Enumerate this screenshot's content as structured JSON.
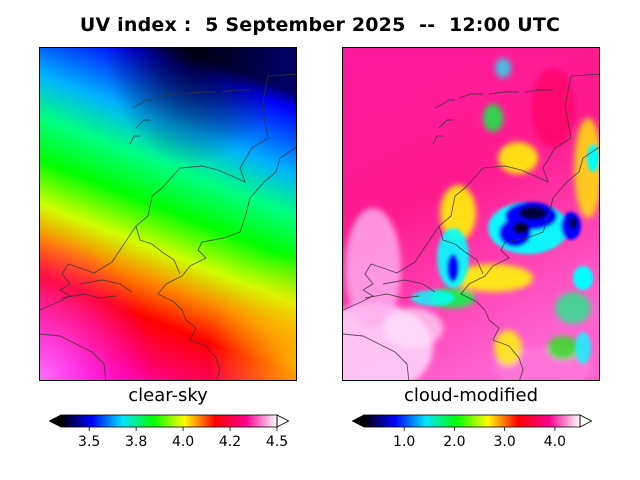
{
  "figure": {
    "title": "UV index :  5 September 2025  --  12:00 UTC"
  },
  "panels": [
    {
      "label": "clear-sky",
      "colorbar": {
        "min": 3.35,
        "max": 4.5,
        "ticks": [
          "3.5",
          "3.8",
          "4.0",
          "4.2",
          "4.5"
        ],
        "tick_values": [
          3.5,
          3.75,
          4.0,
          4.25,
          4.5
        ]
      }
    },
    {
      "label": "cloud-modified",
      "colorbar": {
        "min": 0.2,
        "max": 4.5,
        "ticks": [
          "1.0",
          "2.0",
          "3.0",
          "4.0"
        ],
        "tick_values": [
          1.0,
          2.0,
          3.0,
          4.0
        ]
      }
    }
  ],
  "colors": {
    "scale": [
      "#000000",
      "#0000ff",
      "#00e5ff",
      "#00ff00",
      "#ffff00",
      "#ff0000",
      "#ff0090",
      "#ffffff"
    ],
    "coastline": "#333333"
  }
}
